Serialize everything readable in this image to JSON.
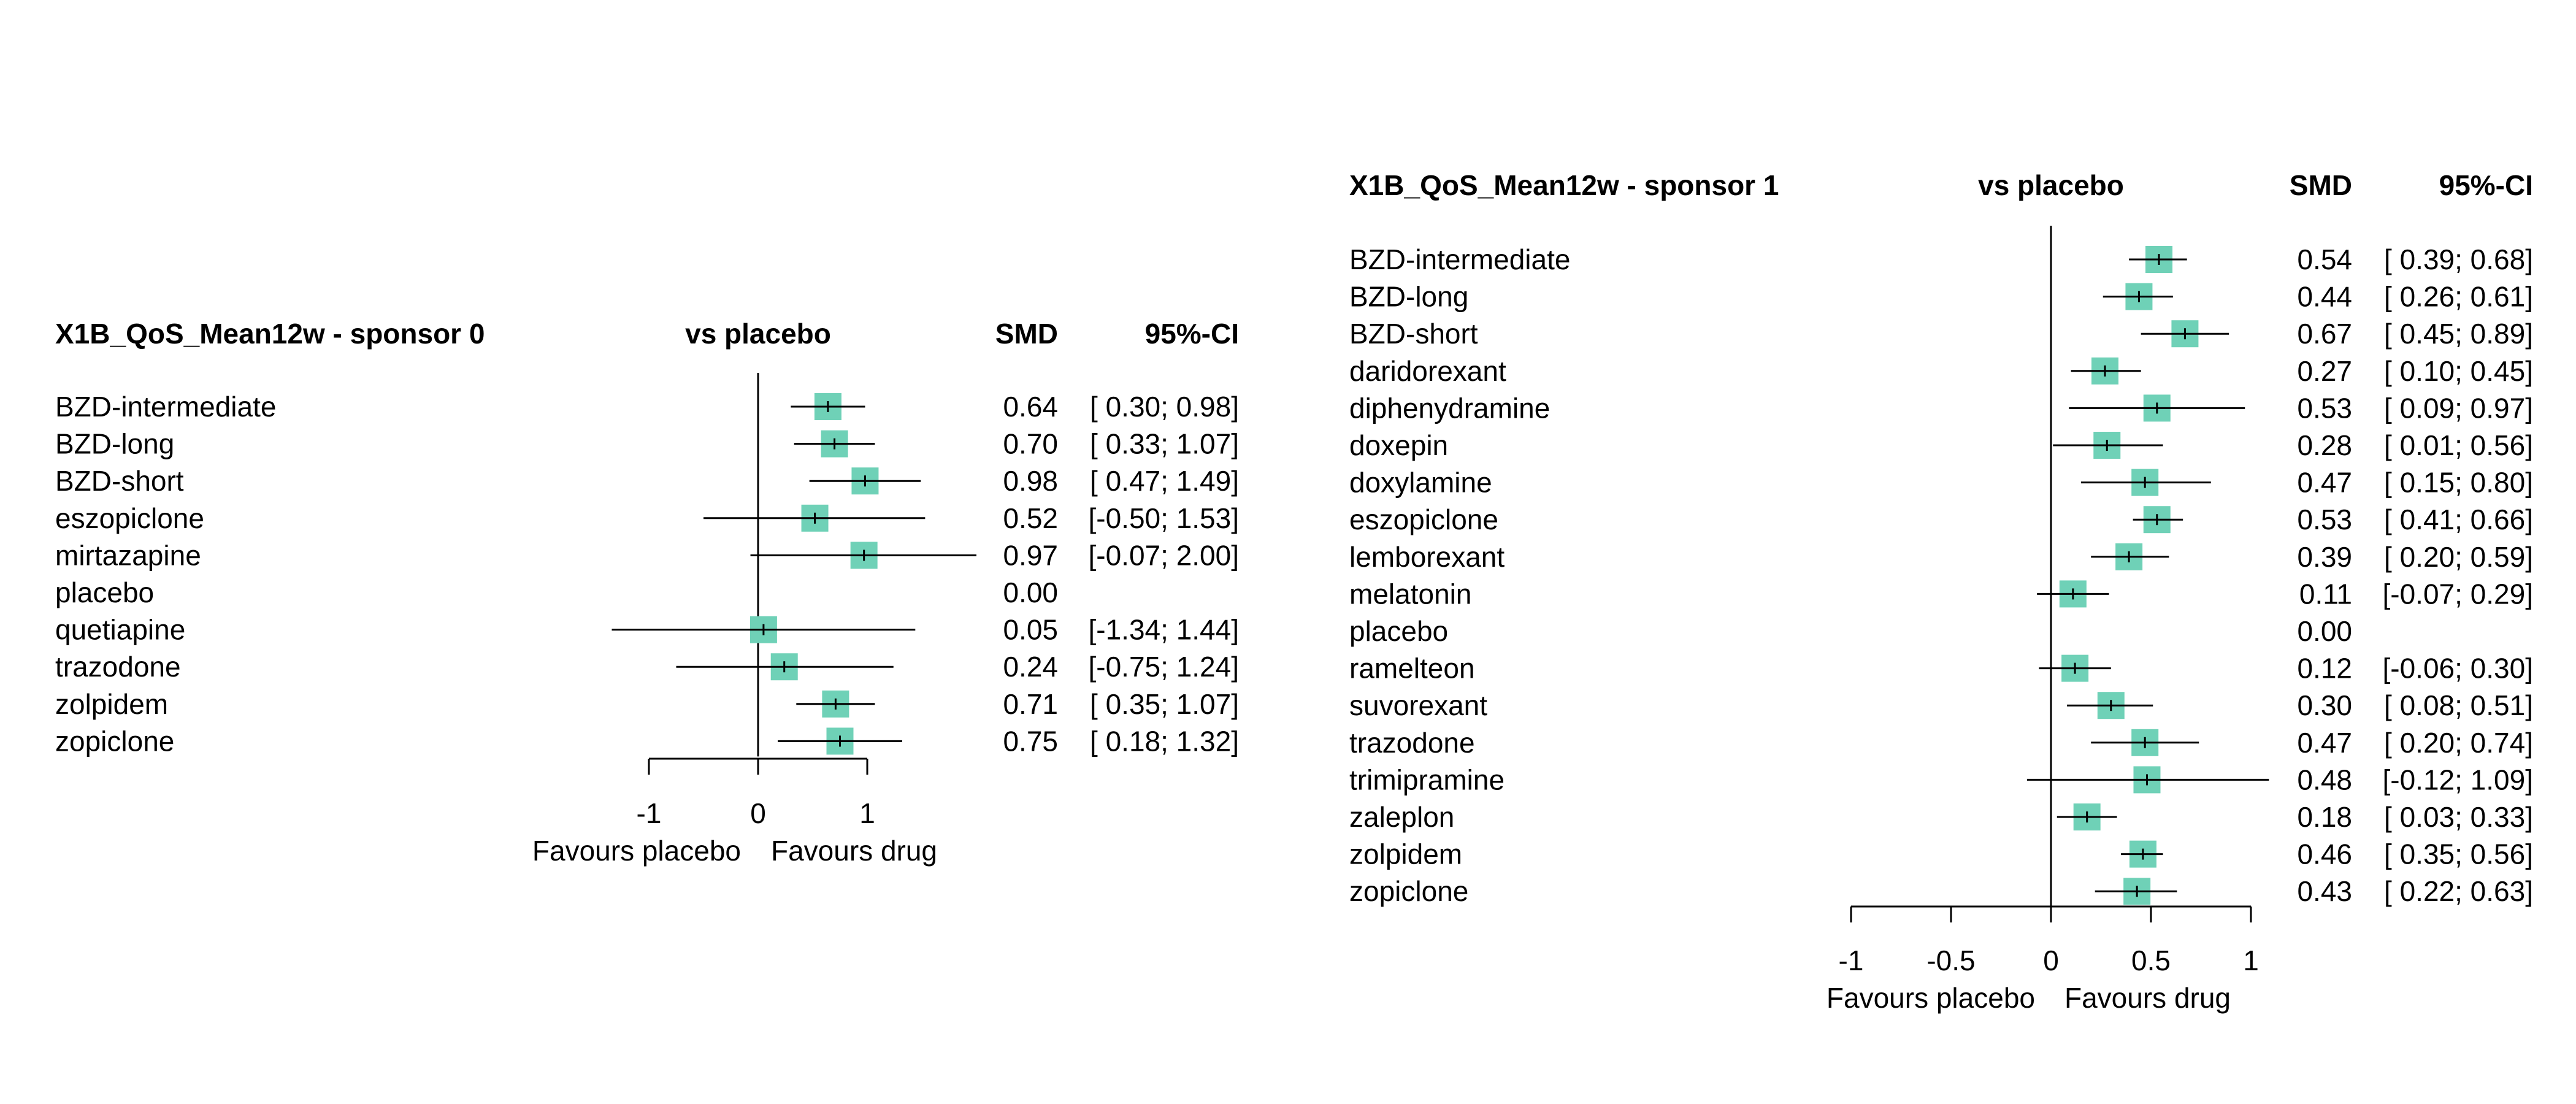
{
  "colors": {
    "box": "#6fd1b7",
    "line": "#000000"
  },
  "chart_data": [
    {
      "type": "forest",
      "title": "X1B_QoS_Mean12w - sponsor 0",
      "column_headers": {
        "comparison": "vs placebo",
        "estimate": "SMD",
        "ci": "95%-CI"
      },
      "xlim": [
        -1,
        1
      ],
      "xticks": [
        -1,
        0,
        1
      ],
      "xtick_labels": [
        "-1",
        "0",
        "1"
      ],
      "xlabel_left": "Favours placebo",
      "xlabel_right": "Favours drug",
      "treatments": [
        {
          "name": "BZD-intermediate",
          "smd": 0.64,
          "lower": 0.3,
          "upper": 0.98,
          "smd_text": "0.64",
          "ci_text": "[ 0.30; 0.98]"
        },
        {
          "name": "BZD-long",
          "smd": 0.7,
          "lower": 0.33,
          "upper": 1.07,
          "smd_text": "0.70",
          "ci_text": "[ 0.33; 1.07]"
        },
        {
          "name": "BZD-short",
          "smd": 0.98,
          "lower": 0.47,
          "upper": 1.49,
          "smd_text": "0.98",
          "ci_text": "[ 0.47; 1.49]"
        },
        {
          "name": "eszopiclone",
          "smd": 0.52,
          "lower": -0.5,
          "upper": 1.53,
          "smd_text": "0.52",
          "ci_text": "[-0.50; 1.53]"
        },
        {
          "name": "mirtazapine",
          "smd": 0.97,
          "lower": -0.07,
          "upper": 2.0,
          "smd_text": "0.97",
          "ci_text": "[-0.07; 2.00]"
        },
        {
          "name": "placebo",
          "smd": null,
          "lower": null,
          "upper": null,
          "smd_text": "0.00",
          "ci_text": ""
        },
        {
          "name": "quetiapine",
          "smd": 0.05,
          "lower": -1.34,
          "upper": 1.44,
          "smd_text": "0.05",
          "ci_text": "[-1.34; 1.44]"
        },
        {
          "name": "trazodone",
          "smd": 0.24,
          "lower": -0.75,
          "upper": 1.24,
          "smd_text": "0.24",
          "ci_text": "[-0.75; 1.24]"
        },
        {
          "name": "zolpidem",
          "smd": 0.71,
          "lower": 0.35,
          "upper": 1.07,
          "smd_text": "0.71",
          "ci_text": "[ 0.35; 1.07]"
        },
        {
          "name": "zopiclone",
          "smd": 0.75,
          "lower": 0.18,
          "upper": 1.32,
          "smd_text": "0.75",
          "ci_text": "[ 0.18; 1.32]"
        }
      ]
    },
    {
      "type": "forest",
      "title": "X1B_QoS_Mean12w - sponsor 1",
      "column_headers": {
        "comparison": "vs placebo",
        "estimate": "SMD",
        "ci": "95%-CI"
      },
      "xlim": [
        -1,
        1
      ],
      "xticks": [
        -1,
        -0.5,
        0,
        0.5,
        1
      ],
      "xtick_labels": [
        "-1",
        "-0.5",
        "0",
        "0.5",
        "1"
      ],
      "xlabel_left": "Favours placebo",
      "xlabel_right": "Favours drug",
      "treatments": [
        {
          "name": "BZD-intermediate",
          "smd": 0.54,
          "lower": 0.39,
          "upper": 0.68,
          "smd_text": "0.54",
          "ci_text": "[ 0.39; 0.68]"
        },
        {
          "name": "BZD-long",
          "smd": 0.44,
          "lower": 0.26,
          "upper": 0.61,
          "smd_text": "0.44",
          "ci_text": "[ 0.26; 0.61]"
        },
        {
          "name": "BZD-short",
          "smd": 0.67,
          "lower": 0.45,
          "upper": 0.89,
          "smd_text": "0.67",
          "ci_text": "[ 0.45; 0.89]"
        },
        {
          "name": "daridorexant",
          "smd": 0.27,
          "lower": 0.1,
          "upper": 0.45,
          "smd_text": "0.27",
          "ci_text": "[ 0.10; 0.45]"
        },
        {
          "name": "diphenydramine",
          "smd": 0.53,
          "lower": 0.09,
          "upper": 0.97,
          "smd_text": "0.53",
          "ci_text": "[ 0.09; 0.97]"
        },
        {
          "name": "doxepin",
          "smd": 0.28,
          "lower": 0.01,
          "upper": 0.56,
          "smd_text": "0.28",
          "ci_text": "[ 0.01; 0.56]"
        },
        {
          "name": "doxylamine",
          "smd": 0.47,
          "lower": 0.15,
          "upper": 0.8,
          "smd_text": "0.47",
          "ci_text": "[ 0.15; 0.80]"
        },
        {
          "name": "eszopiclone",
          "smd": 0.53,
          "lower": 0.41,
          "upper": 0.66,
          "smd_text": "0.53",
          "ci_text": "[ 0.41; 0.66]"
        },
        {
          "name": "lemborexant",
          "smd": 0.39,
          "lower": 0.2,
          "upper": 0.59,
          "smd_text": "0.39",
          "ci_text": "[ 0.20; 0.59]"
        },
        {
          "name": "melatonin",
          "smd": 0.11,
          "lower": -0.07,
          "upper": 0.29,
          "smd_text": "0.11",
          "ci_text": "[-0.07; 0.29]"
        },
        {
          "name": "placebo",
          "smd": null,
          "lower": null,
          "upper": null,
          "smd_text": "0.00",
          "ci_text": ""
        },
        {
          "name": "ramelteon",
          "smd": 0.12,
          "lower": -0.06,
          "upper": 0.3,
          "smd_text": "0.12",
          "ci_text": "[-0.06; 0.30]"
        },
        {
          "name": "suvorexant",
          "smd": 0.3,
          "lower": 0.08,
          "upper": 0.51,
          "smd_text": "0.30",
          "ci_text": "[ 0.08; 0.51]"
        },
        {
          "name": "trazodone",
          "smd": 0.47,
          "lower": 0.2,
          "upper": 0.74,
          "smd_text": "0.47",
          "ci_text": "[ 0.20; 0.74]"
        },
        {
          "name": "trimipramine",
          "smd": 0.48,
          "lower": -0.12,
          "upper": 1.09,
          "smd_text": "0.48",
          "ci_text": "[-0.12; 1.09]"
        },
        {
          "name": "zaleplon",
          "smd": 0.18,
          "lower": 0.03,
          "upper": 0.33,
          "smd_text": "0.18",
          "ci_text": "[ 0.03; 0.33]"
        },
        {
          "name": "zolpidem",
          "smd": 0.46,
          "lower": 0.35,
          "upper": 0.56,
          "smd_text": "0.46",
          "ci_text": "[ 0.35; 0.56]"
        },
        {
          "name": "zopiclone",
          "smd": 0.43,
          "lower": 0.22,
          "upper": 0.63,
          "smd_text": "0.43",
          "ci_text": "[ 0.22; 0.63]"
        }
      ]
    }
  ]
}
